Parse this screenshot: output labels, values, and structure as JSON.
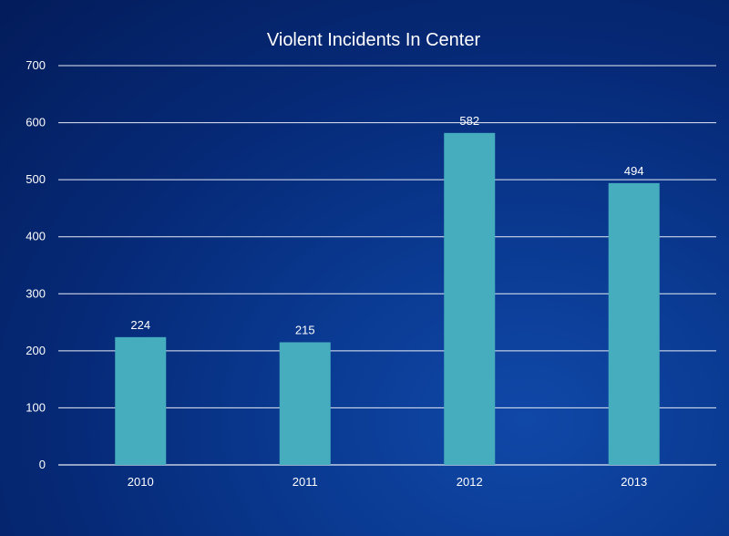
{
  "chart_data": {
    "type": "bar",
    "title": "Violent Incidents In Center",
    "xlabel": "",
    "ylabel": "",
    "categories": [
      "2010",
      "2011",
      "2012",
      "2013"
    ],
    "values": [
      224,
      215,
      582,
      494
    ],
    "data_labels": [
      "224",
      "215",
      "582",
      "494"
    ],
    "ylim": [
      0,
      700
    ],
    "yticks": [
      "0",
      "100",
      "200",
      "300",
      "400",
      "500",
      "600",
      "700"
    ],
    "grid": true,
    "legend": "none",
    "colors": {
      "bar": "#45adbd",
      "background": "#062a78",
      "text": "#ffffff",
      "gridline": "#e6ecf5"
    }
  }
}
